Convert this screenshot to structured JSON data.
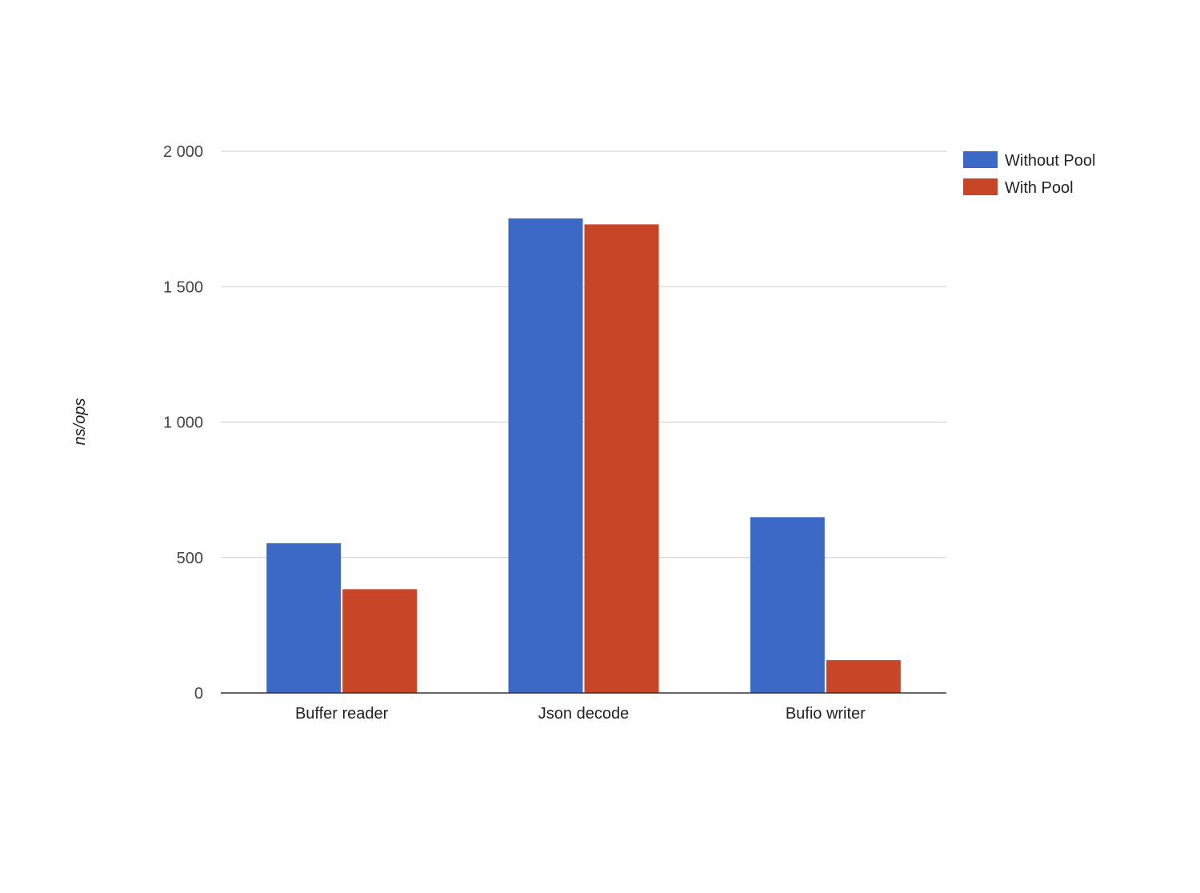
{
  "chart_data": {
    "type": "bar",
    "title": "",
    "xlabel": "",
    "ylabel": "ns/ops",
    "categories": [
      "Buffer reader",
      "Json decode",
      "Bufio writer"
    ],
    "series": [
      {
        "name": "Without Pool",
        "color": "#3d69c6",
        "values": [
          553,
          1752,
          649
        ]
      },
      {
        "name": "With Pool",
        "color": "#c94527",
        "values": [
          383,
          1730,
          121
        ]
      }
    ],
    "ylim": [
      0,
      2000
    ],
    "yticks": [
      0,
      500,
      1000,
      1500,
      2000
    ],
    "ytick_labels": [
      "0",
      "500",
      "1 000",
      "1 500",
      "2 000"
    ],
    "grid": true,
    "legend": "right"
  }
}
